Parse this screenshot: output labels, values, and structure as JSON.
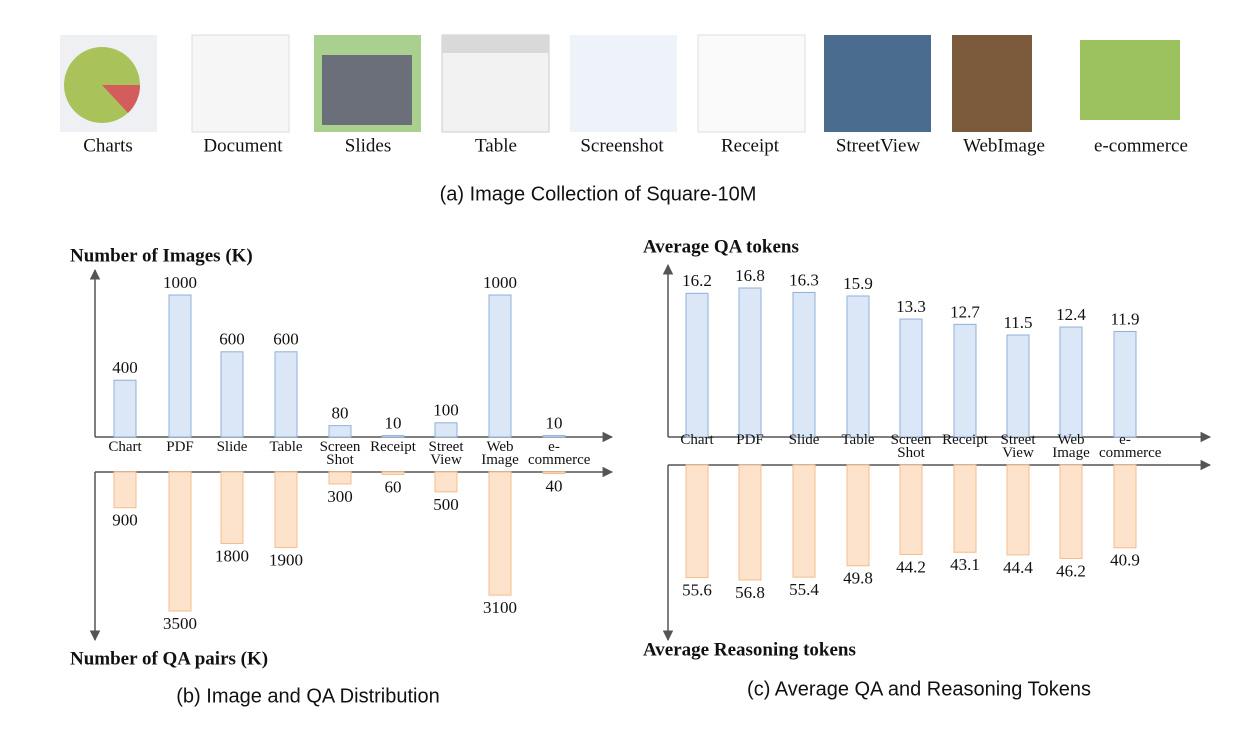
{
  "image_collection": {
    "items": [
      "Charts",
      "Document",
      "Slides",
      "Table",
      "Screenshot",
      "Receipt",
      "StreetView",
      "WebImage",
      "e-commerce"
    ],
    "caption": "(a) Image Collection of Square-10M"
  },
  "chart_data": [
    {
      "type": "mirrored-bar",
      "caption": "(b) Image and QA Distribution",
      "categories": [
        "Chart",
        "PDF",
        "Slide",
        "Table",
        "Screen Shot",
        "Receipt",
        "Street View",
        "Web Image",
        "e-commerce"
      ],
      "series": [
        {
          "name": "Number of Images (K)",
          "color": "#dbe7f6",
          "values": [
            400,
            1000,
            600,
            600,
            80,
            10,
            100,
            1000,
            10
          ]
        },
        {
          "name": "Number of QA pairs (K)",
          "color": "#fde3cb",
          "values": [
            900,
            3500,
            1800,
            1900,
            300,
            60,
            500,
            3100,
            40
          ]
        }
      ]
    },
    {
      "type": "mirrored-bar",
      "caption": "(c) Average QA and Reasoning Tokens",
      "categories": [
        "Chart",
        "PDF",
        "Slide",
        "Table",
        "Screen Shot",
        "Receipt",
        "Street View",
        "Web Image",
        "e-commerce"
      ],
      "series": [
        {
          "name": "Average QA tokens",
          "color": "#dbe7f6",
          "values": [
            16.2,
            16.8,
            16.3,
            15.9,
            13.3,
            12.7,
            11.5,
            12.4,
            11.9
          ]
        },
        {
          "name": "Average Reasoning tokens",
          "color": "#fde3cb",
          "values": [
            55.6,
            56.8,
            55.4,
            49.8,
            44.2,
            43.1,
            44.4,
            46.2,
            40.9
          ]
        }
      ]
    }
  ]
}
